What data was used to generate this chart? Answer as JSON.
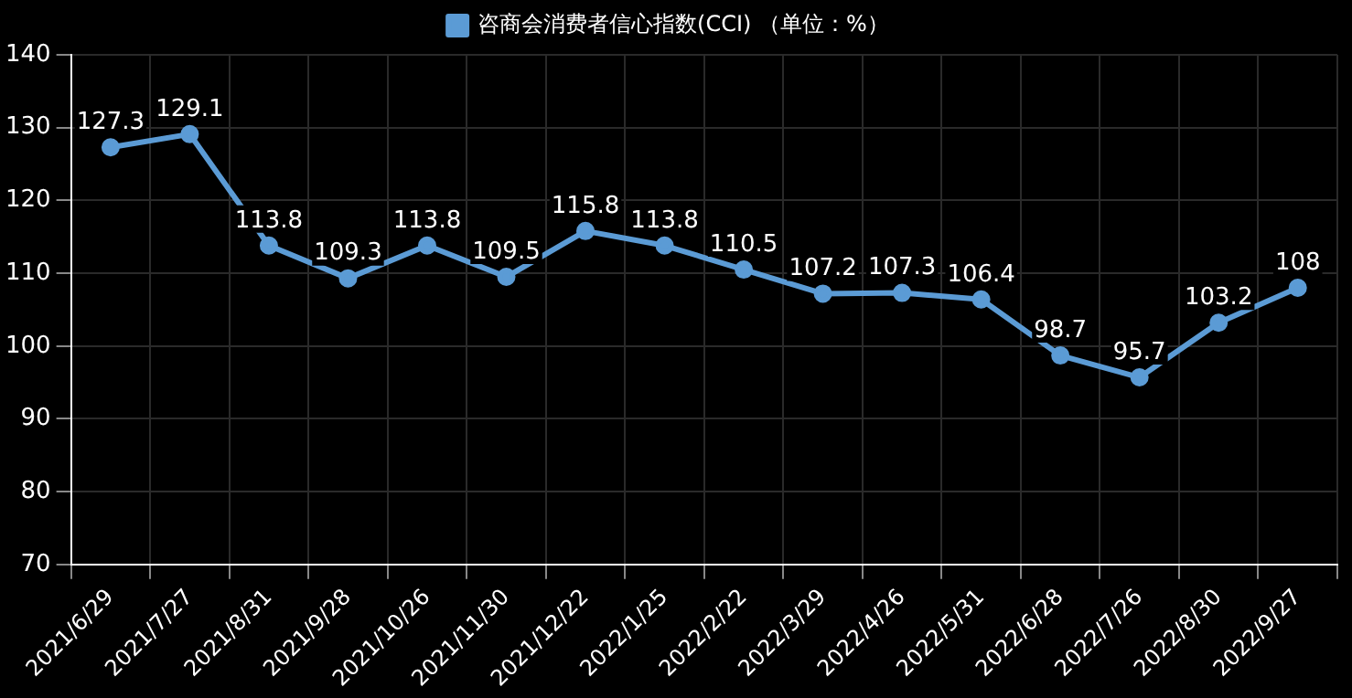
{
  "chart_data": {
    "type": "line",
    "categories": [
      "2021/6/29",
      "2021/7/27",
      "2021/8/31",
      "2021/9/28",
      "2021/10/26",
      "2021/11/30",
      "2021/12/22",
      "2022/1/25",
      "2022/2/22",
      "2022/3/29",
      "2022/4/26",
      "2022/5/31",
      "2022/6/28",
      "2022/7/26",
      "2022/8/30",
      "2022/9/27"
    ],
    "series": [
      {
        "name": "咨商会消费者信心指数(CCI) （单位：%）",
        "color": "#5b9bd5",
        "values": [
          127.3,
          129.1,
          113.8,
          109.3,
          113.8,
          109.5,
          115.8,
          113.8,
          110.5,
          107.2,
          107.3,
          106.4,
          98.7,
          95.7,
          103.2,
          108
        ]
      }
    ],
    "ylim": [
      70,
      140
    ],
    "yticks": [
      70,
      80,
      90,
      100,
      110,
      120,
      130,
      140
    ],
    "grid": true,
    "legend": "top",
    "marker": "circle",
    "line_style": "solid",
    "data_labels": true
  }
}
